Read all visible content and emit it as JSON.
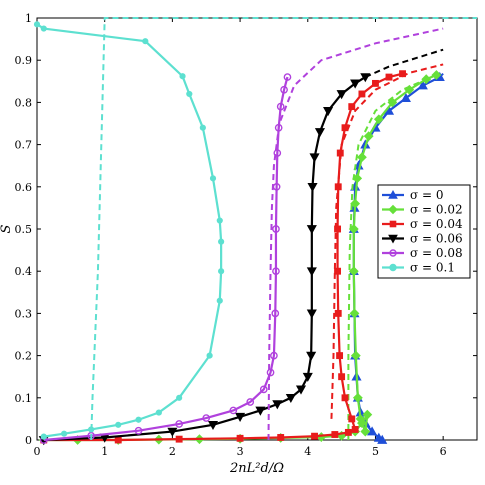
{
  "chart_data": {
    "type": "line",
    "xlabel": "2nL²d/Ω",
    "ylabel": "S",
    "xlim": [
      0,
      6.5
    ],
    "ylim": [
      0,
      1
    ],
    "xticks": [
      0,
      1,
      2,
      3,
      4,
      5,
      6
    ],
    "yticks": [
      0,
      0.1,
      0.2,
      0.3,
      0.4,
      0.5,
      0.6,
      0.7,
      0.8,
      0.9,
      1
    ],
    "grid": false,
    "legend_position": "right",
    "legend": [
      "σ = 0",
      "σ = 0.02",
      "σ = 0.04",
      "σ = 0.06",
      "σ = 0.08",
      "σ = 0.1"
    ],
    "series": [
      {
        "name": "σ = 0",
        "color": "#1f4fd8",
        "marker": "triangle-up",
        "points": [
          [
            5.1,
            0.0
          ],
          [
            5.05,
            0.005
          ],
          [
            4.95,
            0.02
          ],
          [
            4.85,
            0.04
          ],
          [
            4.78,
            0.065
          ],
          [
            4.74,
            0.1
          ],
          [
            4.72,
            0.15
          ],
          [
            4.7,
            0.2
          ],
          [
            4.69,
            0.3
          ],
          [
            4.68,
            0.4
          ],
          [
            4.68,
            0.5
          ],
          [
            4.69,
            0.55
          ],
          [
            4.7,
            0.6
          ],
          [
            4.75,
            0.65
          ],
          [
            4.85,
            0.7
          ],
          [
            5.0,
            0.74
          ],
          [
            5.2,
            0.78
          ],
          [
            5.45,
            0.81
          ],
          [
            5.7,
            0.84
          ],
          [
            5.95,
            0.86
          ]
        ],
        "dashed": [
          [
            5.95,
            0.86
          ],
          [
            6.0,
            0.868
          ]
        ]
      },
      {
        "name": "σ = 0.02",
        "color": "#66e03a",
        "marker": "diamond",
        "points": [
          [
            0.1,
            0.0
          ],
          [
            0.6,
            0.0
          ],
          [
            1.2,
            0.0
          ],
          [
            1.8,
            0.001
          ],
          [
            2.4,
            0.002
          ],
          [
            3.0,
            0.003
          ],
          [
            3.6,
            0.005
          ],
          [
            4.2,
            0.007
          ],
          [
            4.5,
            0.01
          ],
          [
            4.7,
            0.02
          ],
          [
            4.8,
            0.04
          ],
          [
            4.88,
            0.06
          ],
          [
            4.85,
            0.02
          ],
          [
            4.78,
            0.05
          ],
          [
            4.74,
            0.1
          ],
          [
            4.71,
            0.2
          ],
          [
            4.69,
            0.3
          ],
          [
            4.68,
            0.4
          ],
          [
            4.68,
            0.5
          ],
          [
            4.7,
            0.56
          ],
          [
            4.73,
            0.62
          ],
          [
            4.8,
            0.67
          ],
          [
            4.9,
            0.72
          ],
          [
            5.05,
            0.76
          ],
          [
            5.25,
            0.8
          ],
          [
            5.5,
            0.83
          ],
          [
            5.75,
            0.855
          ],
          [
            5.9,
            0.865
          ]
        ],
        "dashed": [
          [
            4.6,
            0.0
          ],
          [
            4.6,
            0.2
          ],
          [
            4.62,
            0.45
          ],
          [
            4.66,
            0.6
          ],
          [
            4.75,
            0.7
          ],
          [
            5.0,
            0.78
          ],
          [
            5.4,
            0.83
          ],
          [
            5.9,
            0.865
          ]
        ]
      },
      {
        "name": "σ = 0.04",
        "color": "#e81c1c",
        "marker": "square",
        "points": [
          [
            0.1,
            0.0
          ],
          [
            1.2,
            0.0
          ],
          [
            2.1,
            0.002
          ],
          [
            3.0,
            0.004
          ],
          [
            3.6,
            0.006
          ],
          [
            4.1,
            0.009
          ],
          [
            4.4,
            0.013
          ],
          [
            4.6,
            0.018
          ],
          [
            4.7,
            0.025
          ],
          [
            4.65,
            0.05
          ],
          [
            4.55,
            0.1
          ],
          [
            4.5,
            0.15
          ],
          [
            4.47,
            0.2
          ],
          [
            4.45,
            0.3
          ],
          [
            4.44,
            0.4
          ],
          [
            4.44,
            0.5
          ],
          [
            4.45,
            0.6
          ],
          [
            4.48,
            0.68
          ],
          [
            4.55,
            0.74
          ],
          [
            4.65,
            0.79
          ],
          [
            4.8,
            0.82
          ],
          [
            5.0,
            0.845
          ],
          [
            5.2,
            0.86
          ],
          [
            5.4,
            0.868
          ]
        ],
        "dashed": [
          [
            4.35,
            0.05
          ],
          [
            4.38,
            0.2
          ],
          [
            4.4,
            0.4
          ],
          [
            4.42,
            0.55
          ],
          [
            4.5,
            0.7
          ],
          [
            4.7,
            0.78
          ],
          [
            5.0,
            0.83
          ],
          [
            5.5,
            0.87
          ],
          [
            6.0,
            0.89
          ]
        ]
      },
      {
        "name": "σ = 0.06",
        "color": "#000000",
        "marker": "triangle-down",
        "points": [
          [
            0.1,
            0.0
          ],
          [
            1.0,
            0.006
          ],
          [
            2.0,
            0.02
          ],
          [
            2.6,
            0.036
          ],
          [
            3.0,
            0.055
          ],
          [
            3.3,
            0.07
          ],
          [
            3.55,
            0.085
          ],
          [
            3.75,
            0.1
          ],
          [
            3.9,
            0.12
          ],
          [
            4.0,
            0.15
          ],
          [
            4.05,
            0.2
          ],
          [
            4.06,
            0.3
          ],
          [
            4.06,
            0.4
          ],
          [
            4.06,
            0.5
          ],
          [
            4.07,
            0.6
          ],
          [
            4.1,
            0.67
          ],
          [
            4.18,
            0.73
          ],
          [
            4.3,
            0.78
          ],
          [
            4.5,
            0.82
          ],
          [
            4.7,
            0.845
          ],
          [
            4.85,
            0.86
          ]
        ],
        "dashed": [
          [
            4.85,
            0.86
          ],
          [
            5.2,
            0.885
          ],
          [
            5.6,
            0.905
          ],
          [
            6.0,
            0.925
          ]
        ]
      },
      {
        "name": "σ = 0.08",
        "color": "#b041dd",
        "marker": "circle",
        "points": [
          [
            0.1,
            0.0
          ],
          [
            0.8,
            0.01
          ],
          [
            1.5,
            0.022
          ],
          [
            2.1,
            0.038
          ],
          [
            2.5,
            0.052
          ],
          [
            2.9,
            0.07
          ],
          [
            3.15,
            0.09
          ],
          [
            3.35,
            0.12
          ],
          [
            3.45,
            0.16
          ],
          [
            3.5,
            0.2
          ],
          [
            3.52,
            0.3
          ],
          [
            3.53,
            0.4
          ],
          [
            3.53,
            0.5
          ],
          [
            3.54,
            0.6
          ],
          [
            3.55,
            0.68
          ],
          [
            3.57,
            0.74
          ],
          [
            3.6,
            0.79
          ],
          [
            3.65,
            0.83
          ],
          [
            3.7,
            0.86
          ]
        ],
        "dashed": [
          [
            3.42,
            0.0
          ],
          [
            3.43,
            0.2
          ],
          [
            3.45,
            0.4
          ],
          [
            3.47,
            0.55
          ],
          [
            3.5,
            0.65
          ],
          [
            3.58,
            0.75
          ],
          [
            3.8,
            0.84
          ],
          [
            4.2,
            0.9
          ],
          [
            5.0,
            0.94
          ],
          [
            6.0,
            0.975
          ]
        ]
      },
      {
        "name": "σ = 0.1",
        "color": "#5de0d0",
        "marker": "circle",
        "points": [
          [
            0.0,
            0.985
          ],
          [
            0.1,
            0.975
          ],
          [
            1.6,
            0.945
          ],
          [
            2.15,
            0.862
          ],
          [
            2.25,
            0.82
          ],
          [
            2.45,
            0.74
          ],
          [
            2.6,
            0.62
          ],
          [
            2.7,
            0.52
          ],
          [
            2.72,
            0.47
          ],
          [
            2.72,
            0.4
          ],
          [
            2.7,
            0.33
          ],
          [
            2.55,
            0.2
          ],
          [
            2.1,
            0.1
          ],
          [
            1.8,
            0.065
          ],
          [
            1.5,
            0.048
          ],
          [
            1.2,
            0.036
          ],
          [
            0.8,
            0.025
          ],
          [
            0.4,
            0.015
          ],
          [
            0.1,
            0.008
          ]
        ],
        "dashed": [
          [
            0.8,
            0.0
          ],
          [
            0.82,
            0.1
          ],
          [
            0.9,
            0.4
          ],
          [
            1.0,
            1.0
          ],
          [
            6.5,
            1.0
          ]
        ]
      }
    ]
  }
}
